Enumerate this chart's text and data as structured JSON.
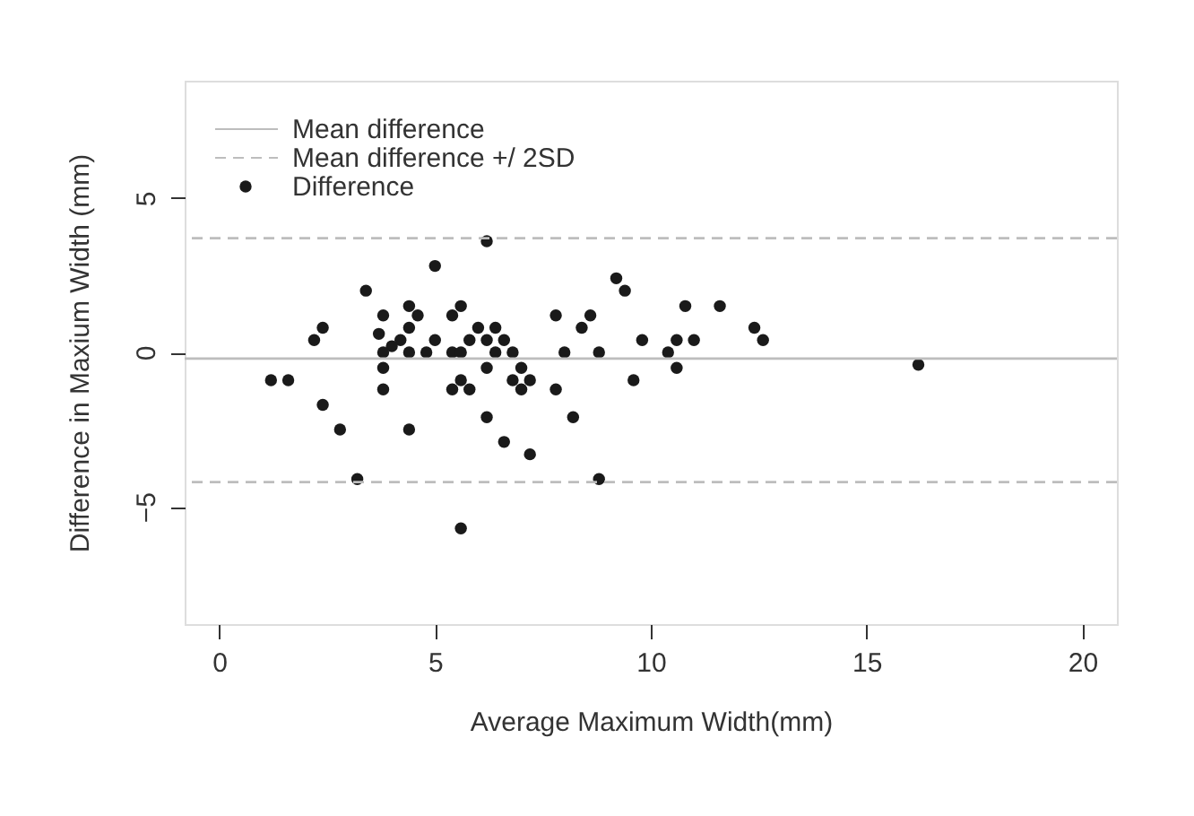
{
  "chart_data": {
    "type": "scatter",
    "xlabel": "Average Maximum Width(mm)",
    "ylabel": "Difference in Maxium Width (mm)",
    "xlim": [
      -0.8,
      20.8
    ],
    "xticks": [
      0,
      5,
      10,
      15,
      20
    ],
    "ylim": [
      -8.8,
      8.8
    ],
    "yticks": [
      -5,
      0,
      5
    ],
    "grid": false,
    "legend": "top left",
    "marker": "circle",
    "series": [
      {
        "name": "Difference",
        "color": "#1a1a1a",
        "x": [
          6.2,
          5.0,
          3.4,
          4.4,
          5.6,
          4.6,
          3.8,
          5.4,
          2.4,
          2.2,
          3.7,
          4.4,
          4.2,
          4.0,
          3.8,
          4.4,
          4.8,
          5.0,
          5.4,
          5.6,
          6.0,
          6.4,
          5.8,
          6.2,
          6.6,
          6.4,
          6.8,
          3.8,
          6.2,
          7.0,
          1.2,
          1.6,
          3.8,
          5.4,
          5.6,
          5.8,
          6.8,
          7.0,
          7.2,
          2.4,
          6.2,
          2.8,
          4.4,
          6.6,
          7.2,
          3.2,
          5.6,
          9.2,
          9.4,
          7.8,
          8.6,
          8.4,
          10.8,
          11.6,
          9.8,
          10.6,
          11.0,
          12.4,
          12.6,
          8.0,
          8.8,
          10.4,
          10.6,
          9.6,
          7.8,
          8.2,
          8.8,
          16.2
        ],
        "values": [
          3.6,
          2.8,
          2.0,
          1.5,
          1.5,
          1.2,
          1.2,
          1.2,
          0.8,
          0.4,
          0.6,
          0.8,
          0.4,
          0.2,
          0.0,
          0.0,
          0.0,
          0.4,
          0.0,
          0.0,
          0.8,
          0.8,
          0.4,
          0.4,
          0.4,
          0.0,
          0.0,
          -0.5,
          -0.5,
          -0.5,
          -0.9,
          -0.9,
          -1.2,
          -1.2,
          -0.9,
          -1.2,
          -0.9,
          -1.2,
          -0.9,
          -1.7,
          -2.1,
          -2.5,
          -2.5,
          -2.9,
          -3.3,
          -4.1,
          -5.7,
          2.4,
          2.0,
          1.2,
          1.2,
          0.8,
          1.5,
          1.5,
          0.4,
          0.4,
          0.4,
          0.8,
          0.4,
          0.0,
          0.0,
          0.0,
          -0.5,
          -0.9,
          -1.2,
          -2.1,
          -4.1,
          -0.4
        ]
      }
    ],
    "ref_lines": [
      {
        "axis": "y",
        "value": -0.2,
        "label": "Mean difference",
        "color": "#bdbdbd",
        "line_style": "solid"
      },
      {
        "axis": "y",
        "value": 3.7,
        "label": "Mean difference +/ 2SD",
        "color": "#bdbdbd",
        "line_style": "dashed"
      },
      {
        "axis": "y",
        "value": -4.2,
        "color": "#bdbdbd",
        "line_style": "dashed"
      }
    ]
  }
}
